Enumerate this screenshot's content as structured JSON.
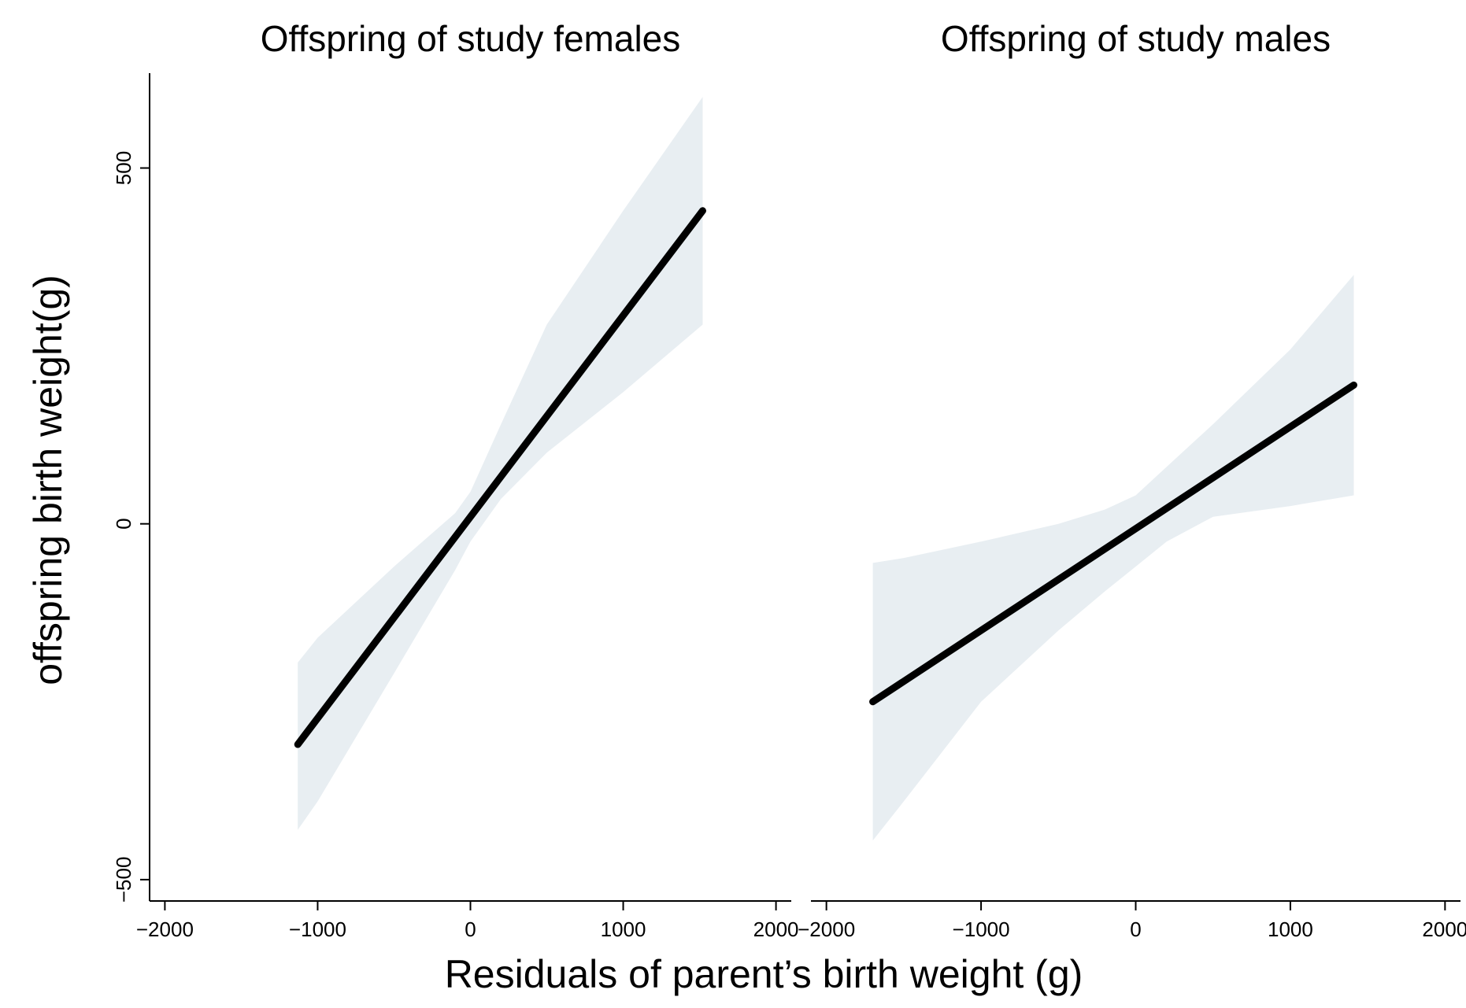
{
  "chart_data": {
    "type": "line",
    "xlabel": "Residuals of parent’s birth weight (g)",
    "ylabel": "offspring birth weight(g)",
    "xlim": [
      -2100,
      2100
    ],
    "ylim": [
      -530,
      620
    ],
    "x_ticks": [
      -2000,
      -1000,
      0,
      1000,
      2000
    ],
    "x_tick_labels": [
      "−2000",
      "−1000",
      "0",
      "1000",
      "2000"
    ],
    "y_ticks": [
      -500,
      0,
      500
    ],
    "y_tick_labels": [
      "−500",
      "0",
      "500"
    ],
    "grid": false,
    "panels": [
      {
        "title": "Offspring of study females",
        "fit_line": {
          "x": [
            -1130,
            1520
          ],
          "y": [
            -310,
            440
          ]
        },
        "confidence_band": {
          "x": [
            -1130,
            -1000,
            -500,
            -100,
            0,
            200,
            500,
            1000,
            1520
          ],
          "lower": [
            -430,
            -390,
            -210,
            -65,
            -25,
            35,
            100,
            185,
            280
          ],
          "upper": [
            -195,
            -160,
            -60,
            15,
            45,
            140,
            280,
            440,
            600
          ]
        }
      },
      {
        "title": "Offspring of study males",
        "fit_line": {
          "x": [
            -1700,
            1410
          ],
          "y": [
            -250,
            195
          ]
        },
        "confidence_band": {
          "x": [
            -1700,
            -1500,
            -1000,
            -500,
            -200,
            0,
            200,
            500,
            1000,
            1410
          ],
          "lower": [
            -445,
            -390,
            -250,
            -150,
            -95,
            -60,
            -25,
            10,
            25,
            40
          ],
          "upper": [
            -55,
            -48,
            -25,
            0,
            20,
            40,
            80,
            140,
            245,
            350
          ]
        }
      }
    ],
    "colors": {
      "line": "#000000",
      "band": "#e8eef2",
      "axis": "#000000"
    }
  }
}
